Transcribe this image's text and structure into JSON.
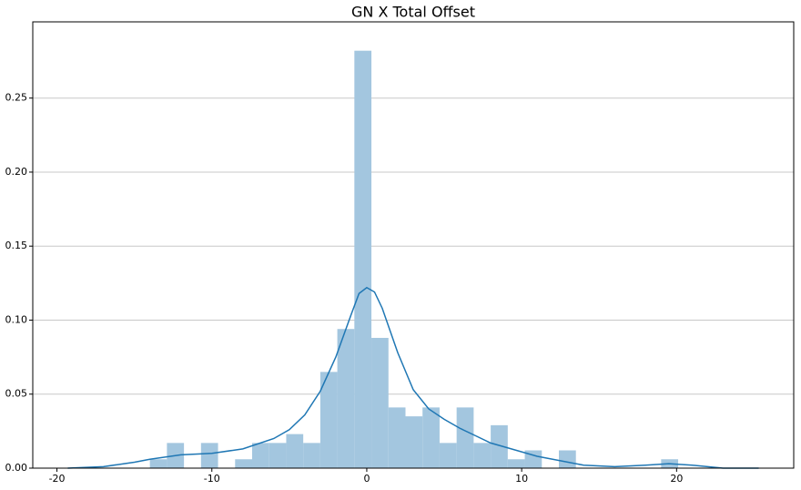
{
  "chart_data": {
    "type": "histogram",
    "title": "GN X Total Offset",
    "bins": [
      -14,
      -12.9,
      -11.8,
      -10.7,
      -9.6,
      -8.5,
      -7.4,
      -6.3,
      -5.2,
      -4.1,
      -3,
      -1.9,
      -0.8,
      0.3,
      1.4,
      2.5,
      3.6,
      4.7,
      5.8,
      6.9,
      8,
      9.1,
      10.2,
      11.3,
      12.4,
      13.5,
      14.6,
      15.7,
      16.8,
      17.9,
      19,
      20.1
    ],
    "values": [
      0.006,
      0.017,
      0,
      0.017,
      0,
      0.006,
      0.017,
      0.017,
      0.023,
      0.017,
      0.065,
      0.094,
      0.282,
      0.088,
      0.041,
      0.035,
      0.041,
      0.017,
      0.041,
      0.017,
      0.029,
      0.006,
      0.012,
      0,
      0.012,
      0,
      0,
      0,
      0,
      0,
      0.006
    ],
    "color": "#a3c6df",
    "kde": {
      "color": "#1f77b4",
      "x": [
        -19.3,
        -17,
        -15,
        -14,
        -12,
        -10,
        -8,
        -6,
        -5,
        -4,
        -3,
        -2,
        -1,
        -0.5,
        0,
        0.5,
        1,
        2,
        3,
        4,
        5,
        6,
        7,
        8,
        9,
        10,
        11,
        12,
        13,
        14,
        16,
        18,
        19.5,
        21,
        23,
        25.3
      ],
      "values": [
        0.0,
        0.001,
        0.004,
        0.006,
        0.009,
        0.01,
        0.013,
        0.02,
        0.026,
        0.036,
        0.052,
        0.075,
        0.104,
        0.118,
        0.122,
        0.119,
        0.108,
        0.078,
        0.053,
        0.04,
        0.033,
        0.027,
        0.022,
        0.017,
        0.014,
        0.011,
        0.008,
        0.006,
        0.004,
        0.002,
        0.001,
        0.002,
        0.003,
        0.002,
        0.0,
        0.0
      ]
    },
    "xlim": [
      -21.56,
      27.56
    ],
    "ylim": [
      0,
      0.3015
    ],
    "xticks": [
      -20,
      -10,
      0,
      10,
      20
    ],
    "yticks": [
      {
        "value": 0,
        "label": "0.00"
      },
      {
        "value": 0.05,
        "label": "0.05"
      },
      {
        "value": 0.1,
        "label": "0.10"
      },
      {
        "value": 0.15,
        "label": "0.15"
      },
      {
        "value": 0.2,
        "label": "0.20"
      },
      {
        "value": 0.25,
        "label": "0.25"
      }
    ],
    "grid": "y"
  }
}
